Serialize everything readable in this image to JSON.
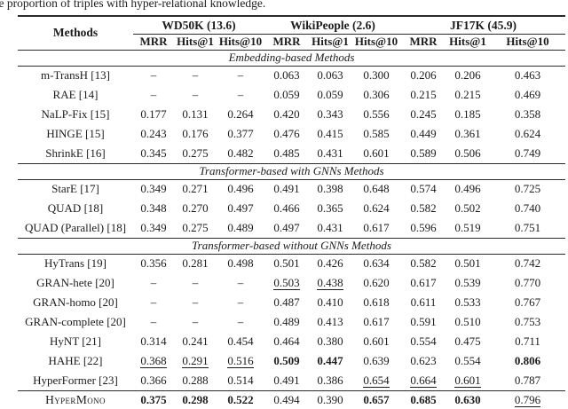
{
  "caption_fragment": "the proportion of triples with hyper-relational knowledge.",
  "table": {
    "methods_header": "Methods",
    "groups": [
      {
        "label": "WD50K (13.6)"
      },
      {
        "label": "WikiPeople (2.6)"
      },
      {
        "label": "JF17K (45.9)"
      }
    ],
    "metric_headers": [
      "MRR",
      "Hits@1",
      "Hits@10",
      "MRR",
      "Hits@1",
      "Hits@10",
      "MRR",
      "Hits@1",
      "Hits@10"
    ],
    "sections": [
      {
        "title": "Embedding-based Methods",
        "rows": [
          {
            "method": "m-TransH [13]",
            "cells": [
              "–",
              "–",
              "–",
              "0.063",
              "0.063",
              "0.300",
              "0.206",
              "0.206",
              "0.463"
            ],
            "fmt": [
              "",
              "",
              "",
              "",
              "",
              "",
              "",
              "",
              ""
            ]
          },
          {
            "method": "RAE [14]",
            "cells": [
              "–",
              "–",
              "–",
              "0.059",
              "0.059",
              "0.306",
              "0.215",
              "0.215",
              "0.469"
            ],
            "fmt": [
              "",
              "",
              "",
              "",
              "",
              "",
              "",
              "",
              ""
            ]
          },
          {
            "method": "NaLP-Fix [15]",
            "cells": [
              "0.177",
              "0.131",
              "0.264",
              "0.420",
              "0.343",
              "0.556",
              "0.245",
              "0.185",
              "0.358"
            ],
            "fmt": [
              "",
              "",
              "",
              "",
              "",
              "",
              "",
              "",
              ""
            ]
          },
          {
            "method": "HINGE [15]",
            "cells": [
              "0.243",
              "0.176",
              "0.377",
              "0.476",
              "0.415",
              "0.585",
              "0.449",
              "0.361",
              "0.624"
            ],
            "fmt": [
              "",
              "",
              "",
              "",
              "",
              "",
              "",
              "",
              ""
            ]
          },
          {
            "method": "ShrinkE [16]",
            "cells": [
              "0.345",
              "0.275",
              "0.482",
              "0.485",
              "0.431",
              "0.601",
              "0.589",
              "0.506",
              "0.749"
            ],
            "fmt": [
              "",
              "",
              "",
              "",
              "",
              "",
              "",
              "",
              ""
            ]
          }
        ]
      },
      {
        "title": "Transformer-based with GNNs Methods",
        "rows": [
          {
            "method": "StarE [17]",
            "cells": [
              "0.349",
              "0.271",
              "0.496",
              "0.491",
              "0.398",
              "0.648",
              "0.574",
              "0.496",
              "0.725"
            ],
            "fmt": [
              "",
              "",
              "",
              "",
              "",
              "",
              "",
              "",
              ""
            ]
          },
          {
            "method": "QUAD [18]",
            "cells": [
              "0.348",
              "0.270",
              "0.497",
              "0.466",
              "0.365",
              "0.624",
              "0.582",
              "0.502",
              "0.740"
            ],
            "fmt": [
              "",
              "",
              "",
              "",
              "",
              "",
              "",
              "",
              ""
            ]
          },
          {
            "method": "QUAD (Parallel) [18]",
            "cells": [
              "0.349",
              "0.275",
              "0.489",
              "0.497",
              "0.431",
              "0.617",
              "0.596",
              "0.519",
              "0.751"
            ],
            "fmt": [
              "",
              "",
              "",
              "",
              "",
              "",
              "",
              "",
              ""
            ]
          }
        ]
      },
      {
        "title": "Transformer-based without GNNs Methods",
        "rows": [
          {
            "method": "HyTrans [19]",
            "cells": [
              "0.356",
              "0.281",
              "0.498",
              "0.501",
              "0.426",
              "0.634",
              "0.582",
              "0.501",
              "0.742"
            ],
            "fmt": [
              "",
              "",
              "",
              "",
              "",
              "",
              "",
              "",
              ""
            ]
          },
          {
            "method": "GRAN-hete [20]",
            "cells": [
              "–",
              "–",
              "–",
              "0.503",
              "0.438",
              "0.620",
              "0.617",
              "0.539",
              "0.770"
            ],
            "fmt": [
              "",
              "",
              "",
              "u",
              "u",
              "",
              "",
              "",
              ""
            ]
          },
          {
            "method": "GRAN-homo [20]",
            "cells": [
              "–",
              "–",
              "–",
              "0.487",
              "0.410",
              "0.618",
              "0.611",
              "0.533",
              "0.767"
            ],
            "fmt": [
              "",
              "",
              "",
              "",
              "",
              "",
              "",
              "",
              ""
            ]
          },
          {
            "method": "GRAN-complete [20]",
            "cells": [
              "–",
              "–",
              "–",
              "0.489",
              "0.413",
              "0.617",
              "0.591",
              "0.510",
              "0.753"
            ],
            "fmt": [
              "",
              "",
              "",
              "",
              "",
              "",
              "",
              "",
              ""
            ]
          },
          {
            "method": "HyNT [21]",
            "cells": [
              "0.314",
              "0.241",
              "0.454",
              "0.464",
              "0.380",
              "0.601",
              "0.554",
              "0.475",
              "0.711"
            ],
            "fmt": [
              "",
              "",
              "",
              "",
              "",
              "",
              "",
              "",
              ""
            ]
          },
          {
            "method": "HAHE [22]",
            "cells": [
              "0.368",
              "0.291",
              "0.516",
              "0.509",
              "0.447",
              "0.639",
              "0.623",
              "0.554",
              "0.806"
            ],
            "fmt": [
              "u",
              "u",
              "u",
              "b",
              "b",
              "",
              "",
              "",
              "b"
            ]
          },
          {
            "method": "HyperFormer [23]",
            "cells": [
              "0.366",
              "0.288",
              "0.514",
              "0.491",
              "0.386",
              "0.654",
              "0.664",
              "0.601",
              "0.787"
            ],
            "fmt": [
              "",
              "",
              "",
              "",
              "",
              "u",
              "u",
              "u",
              ""
            ]
          }
        ]
      }
    ],
    "final_row": {
      "method": "HyperMono",
      "cells": [
        "0.375",
        "0.298",
        "0.522",
        "0.494",
        "0.390",
        "0.657",
        "0.685",
        "0.630",
        "0.796"
      ],
      "fmt": [
        "b",
        "b",
        "b",
        "",
        "",
        "b",
        "b",
        "b",
        "u"
      ]
    }
  }
}
